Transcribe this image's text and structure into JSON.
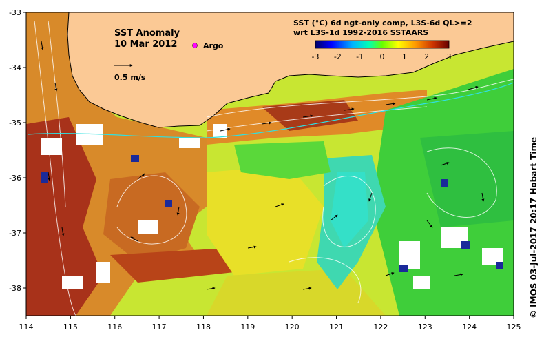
{
  "title": "SST Anomaly",
  "date": "10 Mar 2012",
  "argo_label": "Argo",
  "scale_label": "0.5 m/s",
  "product_line1": "SST (°C) 6d ngt-only comp, L3S-6d QL>=2",
  "product_line2": "wrt L3S-1d 1992-2016 SSTAARS",
  "credit": "© IMOS 03-Jul-2017 20:17 Hobart Time",
  "colorbar": {
    "ticks": [
      "-3",
      "-2",
      "-1",
      "0",
      "1",
      "2",
      "3"
    ],
    "min": -3,
    "max": 3
  },
  "x_axis": {
    "ticks": [
      "114",
      "115",
      "116",
      "117",
      "118",
      "119",
      "120",
      "121",
      "122",
      "123",
      "124",
      "125"
    ],
    "min": 114,
    "max": 125
  },
  "y_axis": {
    "ticks": [
      "-33",
      "-34",
      "-35",
      "-36",
      "-37",
      "-38"
    ],
    "min": -38.5,
    "max": -33
  },
  "colors": {
    "land": "#fbc995",
    "argo": "#ff00ff",
    "no_data": "#ffffff"
  }
}
